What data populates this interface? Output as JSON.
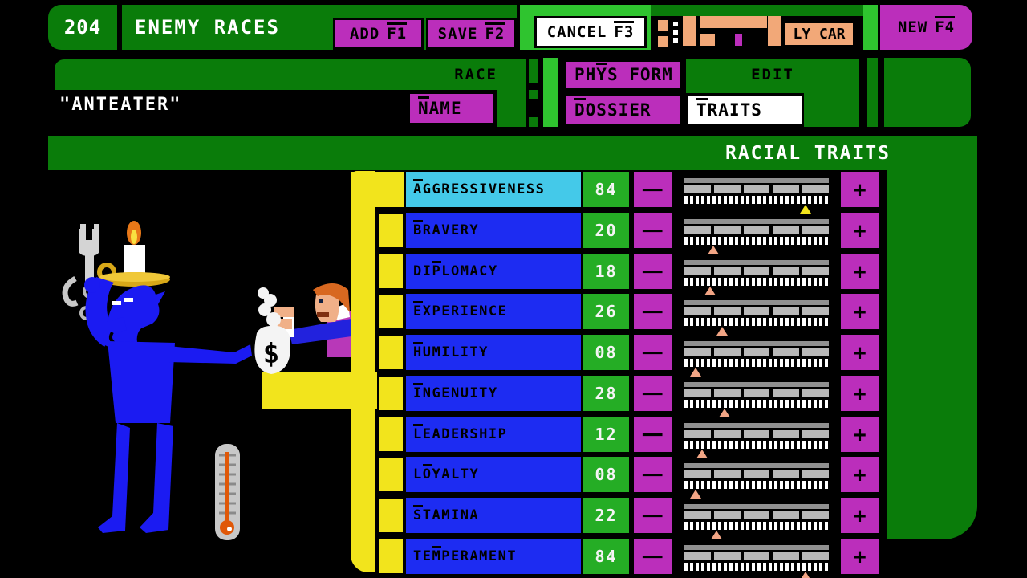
{
  "colors": {
    "dark_green": "#0a7c0a",
    "bright_green": "#2fc42f",
    "magenta": "#bb2ebb",
    "yellow": "#f2e41c",
    "cyan": "#44c9e9",
    "row_blue": "#1d2cf2",
    "val_green": "#25ad25",
    "orange": "#da6110",
    "peach": "#f2a878",
    "pointer_peach": "#f2a585",
    "gray1": "#909090",
    "gray2": "#b8b8b8"
  },
  "header": {
    "id_tab": "204",
    "title": "ENEMY RACES",
    "add_button": {
      "label": "ADD",
      "fkey": "F1"
    },
    "save_button": {
      "label": "SAVE",
      "fkey": "F2"
    },
    "cancel_button": {
      "label": "CANCEL",
      "fkey": "F3"
    },
    "partial_button_label": "LY CAR",
    "new_button": {
      "label": "NEW",
      "fkey": "F4"
    }
  },
  "race_panel": {
    "race_label": "RACE",
    "name_value": "\"ANTEATER\"",
    "name_button": {
      "label": "NAME",
      "hotkey_index": 0
    },
    "physform_button": {
      "label": "PHYS FORM",
      "hotkey_index": 2
    },
    "dossier_button": {
      "label": "DOSSIER",
      "hotkey_index": 0
    },
    "edit_label": "EDIT",
    "traits_tab": {
      "label": "TRAITS",
      "hotkey_index": 0,
      "selected": true
    }
  },
  "traits": {
    "section_title": "RACIAL TRAITS",
    "minus_label": "−",
    "plus_label": "+",
    "value_range": [
      0,
      100
    ],
    "rows": [
      {
        "label": "AGGRESSIVENESS",
        "hotkey_index": 0,
        "value": "84",
        "numeric": 84,
        "selected": true
      },
      {
        "label": "BRAVERY",
        "hotkey_index": 0,
        "value": "20",
        "numeric": 20,
        "selected": false
      },
      {
        "label": "DIPLOMACY",
        "hotkey_index": 2,
        "value": "18",
        "numeric": 18,
        "selected": false
      },
      {
        "label": "EXPERIENCE",
        "hotkey_index": 0,
        "value": "26",
        "numeric": 26,
        "selected": false
      },
      {
        "label": "HUMILITY",
        "hotkey_index": 0,
        "value": "08",
        "numeric": 8,
        "selected": false
      },
      {
        "label": "INGENUITY",
        "hotkey_index": 0,
        "value": "28",
        "numeric": 28,
        "selected": false
      },
      {
        "label": "LEADERSHIP",
        "hotkey_index": 0,
        "value": "12",
        "numeric": 12,
        "selected": false
      },
      {
        "label": "LOYALTY",
        "hotkey_index": 1,
        "value": "08",
        "numeric": 8,
        "selected": false
      },
      {
        "label": "STAMINA",
        "hotkey_index": 0,
        "value": "22",
        "numeric": 22,
        "selected": false
      },
      {
        "label": "TEMPERAMENT",
        "hotkey_index": 2,
        "value": "84",
        "numeric": 84,
        "selected": false
      }
    ]
  },
  "artwork": {
    "money_bag_symbol": "$",
    "depicts": [
      "blue-alien-anteater",
      "wrench-and-chain",
      "candle-on-head",
      "businessman-offering-money-bag",
      "thermometer"
    ]
  }
}
